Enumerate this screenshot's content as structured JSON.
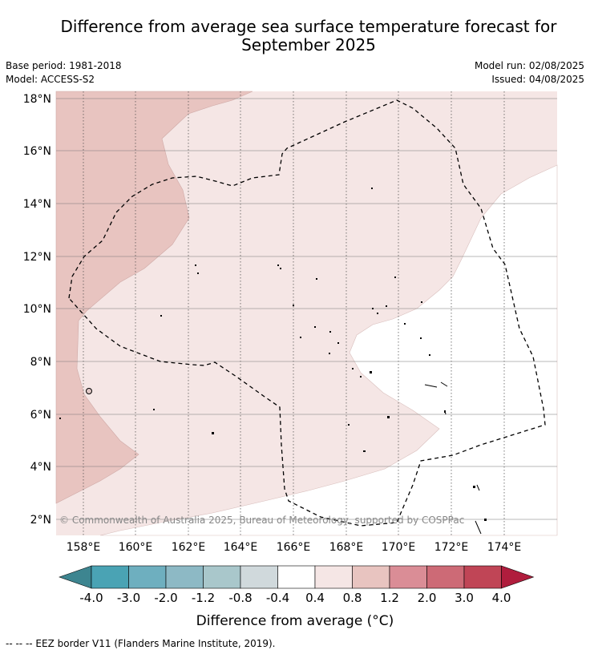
{
  "title_line1": "Difference from average sea surface temperature forecast for",
  "title_line2": "September 2025",
  "base_period": "Base period: 1981-2018",
  "model": "Model: ACCESS-S2",
  "model_run": "Model run: 02/08/2025",
  "issued": "Issued: 04/08/2025",
  "copyright": "© Commonwealth of Australia 2025, Bureau of Meteorology, supported by COSPPac",
  "lat_ticks": [
    "18°N",
    "16°N",
    "14°N",
    "12°N",
    "10°N",
    "8°N",
    "6°N",
    "4°N",
    "2°N"
  ],
  "lon_ticks": [
    "158°E",
    "160°E",
    "162°E",
    "164°E",
    "166°E",
    "168°E",
    "170°E",
    "172°E",
    "174°E"
  ],
  "colorbar": {
    "labels": [
      "-4.0",
      "-3.0",
      "-2.0",
      "-1.2",
      "-0.8",
      "-0.4",
      "0.4",
      "0.8",
      "1.2",
      "2.0",
      "3.0",
      "4.0"
    ],
    "colors": [
      "#3d8590",
      "#4aa3b4",
      "#6eafbf",
      "#8db9c5",
      "#a9c7cb",
      "#d0d9dc",
      "#ffffff",
      "#f5e6e5",
      "#e8c4c0",
      "#da8d96",
      "#cd6a76",
      "#c04556",
      "#b01d3d"
    ],
    "label": "Difference from average (°C)"
  },
  "legend": "--  --  -- EEZ border V11 (Flanders Marine Institute, 2019).",
  "map": {
    "colors": {
      "anomaly_0_8_1_2": "#e8c4c0",
      "anomaly_0_4_0_8": "#f5e6e5",
      "anomaly_neutral": "#ffffff"
    }
  }
}
